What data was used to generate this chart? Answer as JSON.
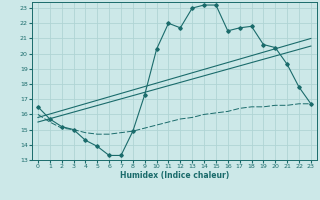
{
  "xlabel": "Humidex (Indice chaleur)",
  "bg_color": "#cce8e8",
  "line_color": "#1a6b6b",
  "grid_color": "#b0d4d4",
  "xlim": [
    -0.5,
    23.5
  ],
  "ylim": [
    13,
    23.4
  ],
  "xticks": [
    0,
    1,
    2,
    3,
    4,
    5,
    6,
    7,
    8,
    9,
    10,
    11,
    12,
    13,
    14,
    15,
    16,
    17,
    18,
    19,
    20,
    21,
    22,
    23
  ],
  "yticks": [
    13,
    14,
    15,
    16,
    17,
    18,
    19,
    20,
    21,
    22,
    23
  ],
  "curve1_x": [
    0,
    1,
    2,
    3,
    4,
    5,
    6,
    7,
    8,
    9,
    10,
    11,
    12,
    13,
    14,
    15,
    16,
    17,
    18,
    19,
    20,
    21,
    22,
    23
  ],
  "curve1_y": [
    16.5,
    15.7,
    15.2,
    15.0,
    14.3,
    13.9,
    13.3,
    13.3,
    14.9,
    17.3,
    20.3,
    22.0,
    21.7,
    23.0,
    23.2,
    23.2,
    21.5,
    21.7,
    21.8,
    20.6,
    20.4,
    19.3,
    17.8,
    16.7
  ],
  "line2_x": [
    0,
    23
  ],
  "line2_y": [
    15.8,
    21.0
  ],
  "line3_x": [
    0,
    23
  ],
  "line3_y": [
    15.5,
    20.5
  ],
  "flatline_x": [
    0,
    1,
    2,
    3,
    4,
    5,
    6,
    7,
    8,
    9,
    10,
    11,
    12,
    13,
    14,
    15,
    16,
    17,
    18,
    19,
    20,
    21,
    22,
    23
  ],
  "flatline_y": [
    16.0,
    15.5,
    15.1,
    15.0,
    14.8,
    14.7,
    14.7,
    14.8,
    14.9,
    15.1,
    15.3,
    15.5,
    15.7,
    15.8,
    16.0,
    16.1,
    16.2,
    16.4,
    16.5,
    16.5,
    16.6,
    16.6,
    16.7,
    16.7
  ]
}
